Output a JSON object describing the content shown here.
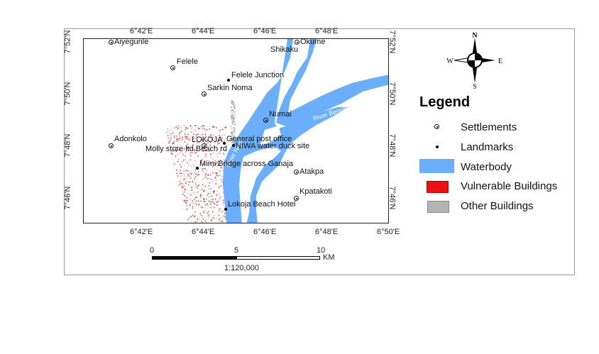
{
  "map": {
    "top_ticks": [
      "6°42'E",
      "6°44'E",
      "6°46'E",
      "6°48'E"
    ],
    "bottom_ticks": [
      "6°42'E",
      "6°44'E",
      "6°46'E",
      "6°48'E",
      "6°50'E"
    ],
    "left_ticks": [
      "7°52'N",
      "7°50'N",
      "7°48'N",
      "7°46'N"
    ],
    "right_ticks": [
      "7°52'N",
      "7°50'N",
      "7°48'N",
      "7°46'N"
    ],
    "settlements": [
      "Aiyegunle",
      "Felele",
      "Sarkin Noma",
      "Okume",
      "Numai",
      "Adonkolo",
      "LOKOJA",
      "Atakpa",
      "Kpatakoti"
    ],
    "extra_labels": [
      "Shikaku"
    ],
    "landmarks": [
      "Felele Junction",
      "General post office",
      "NIWA water duck site",
      "Molly store ltd.Beach rd",
      "Mimi Bridge across Ganaja",
      "Lokoja Beach Hotel"
    ],
    "rivers": [
      "River Niger",
      "River Benue"
    ]
  },
  "north_arrow": {
    "n": "N",
    "s": "S",
    "e": "E",
    "w": "W"
  },
  "legend": {
    "title": "Legend",
    "items": [
      {
        "label": "Settlements",
        "symbol": "settlement",
        "color": "#000000"
      },
      {
        "label": "Landmarks",
        "symbol": "dot",
        "color": "#000000"
      },
      {
        "label": "Waterbody",
        "symbol": "rect",
        "color": "#6aaefc"
      },
      {
        "label": "Vulnerable Buildings",
        "symbol": "rect",
        "color": "#ee1111"
      },
      {
        "label": "Other Buildings",
        "symbol": "rect",
        "color": "#b4b4b4"
      }
    ]
  },
  "scale_bar": {
    "ticks": [
      "0",
      "5",
      "10"
    ],
    "unit": "KM",
    "ratio": "1:120,000"
  },
  "colors": {
    "water": "#6aaefc",
    "vulnerable": "#d42a2a",
    "other": "#aaaaaa"
  }
}
